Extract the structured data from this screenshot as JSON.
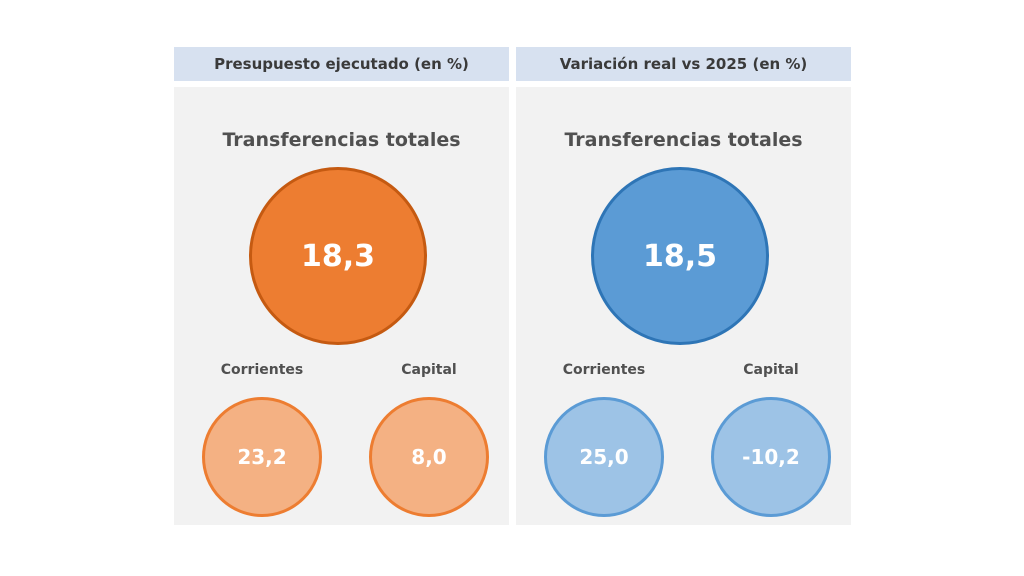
{
  "panels": [
    {
      "header": "Presupuesto ejecutado (en %)",
      "title": "Transferencias totales",
      "total": "18,3",
      "left_label": "Corrientes",
      "left_value": "23,2",
      "right_label": "Capital",
      "right_value": "8,0",
      "colors": {
        "big_fill": "#ed7d31",
        "big_border": "#c55a11",
        "small_fill": "#f4b183",
        "small_border": "#ed7d31"
      }
    },
    {
      "header": "Variación real vs 2025 (en %)",
      "title": "Transferencias totales",
      "total": "18,5",
      "left_label": "Corrientes",
      "left_value": "25,0",
      "right_label": "Capital",
      "right_value": "-10,2",
      "colors": {
        "big_fill": "#5b9bd5",
        "big_border": "#2e75b6",
        "small_fill": "#9dc3e6",
        "small_border": "#5b9bd5"
      }
    }
  ]
}
